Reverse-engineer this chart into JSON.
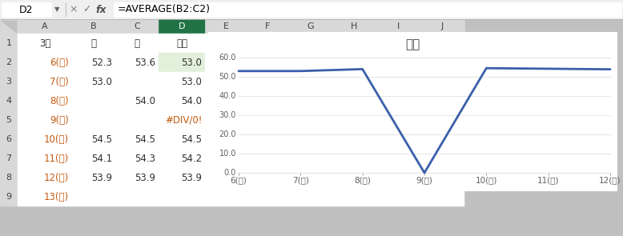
{
  "spreadsheet": {
    "formula_bar_cell": "D2",
    "formula_bar_formula": "=AVERAGE(B2:C2)",
    "header_row": [
      "3月",
      "朝",
      "夕",
      "平均"
    ],
    "rows": [
      [
        "6(火)",
        "52.3",
        "53.6",
        "53.0"
      ],
      [
        "7(水)",
        "53.0",
        "",
        "53.0"
      ],
      [
        "8(木)",
        "",
        "54.0",
        "54.0"
      ],
      [
        "9(金)",
        "",
        "",
        "#DIV/0!"
      ],
      [
        "10(土)",
        "54.5",
        "54.5",
        "54.5"
      ],
      [
        "11(日)",
        "54.1",
        "54.3",
        "54.2"
      ],
      [
        "12(月)",
        "53.9",
        "53.9",
        "53.9"
      ],
      [
        "13(火)",
        "",
        "",
        ""
      ]
    ]
  },
  "chart": {
    "title": "平均",
    "x_labels": [
      "6(火)",
      "7(水)",
      "8(木)",
      "9(金)",
      "10(土)",
      "11(日)",
      "12(月)"
    ],
    "y_values": [
      53.0,
      53.0,
      54.0,
      0.0,
      54.5,
      54.2,
      53.9
    ],
    "y_min": 0.0,
    "y_max": 60.0,
    "y_ticks": [
      0.0,
      10.0,
      20.0,
      30.0,
      40.0,
      50.0,
      60.0
    ],
    "line_color": "#3a5faa",
    "line_width": 2.0
  }
}
